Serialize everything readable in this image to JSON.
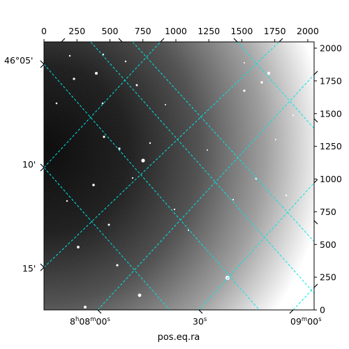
{
  "chart_data": {
    "type": "image",
    "xlabel": "pos.eq.ra",
    "pixel_axes": {
      "x_range": [
        0,
        2048
      ],
      "y_range": [
        0,
        2048
      ],
      "x_ticks": [
        "0",
        "250",
        "500",
        "750",
        "1000",
        "1250",
        "1500",
        "1750",
        "2000"
      ],
      "y_ticks": [
        "0",
        "250",
        "500",
        "750",
        "1000",
        "1250",
        "1500",
        "1750",
        "2000"
      ]
    },
    "world_axes": {
      "ra_ticks": [
        {
          "h": "8",
          "m": "08",
          "s": "00",
          "label_parts": [
            "8",
            "h",
            "08",
            "m",
            "00",
            "s"
          ]
        },
        {
          "h": "",
          "m": "",
          "s": "30",
          "label_parts": [
            "30",
            "s"
          ]
        },
        {
          "h": "",
          "m": "09",
          "s": "00",
          "label_parts": [
            "09",
            "m",
            "00",
            "s"
          ]
        }
      ],
      "dec_ticks": [
        "46°05'",
        "10'",
        "15'"
      ]
    },
    "grid_color": "#00e5e5",
    "grid_style": "dashed",
    "colormap": "gray"
  }
}
